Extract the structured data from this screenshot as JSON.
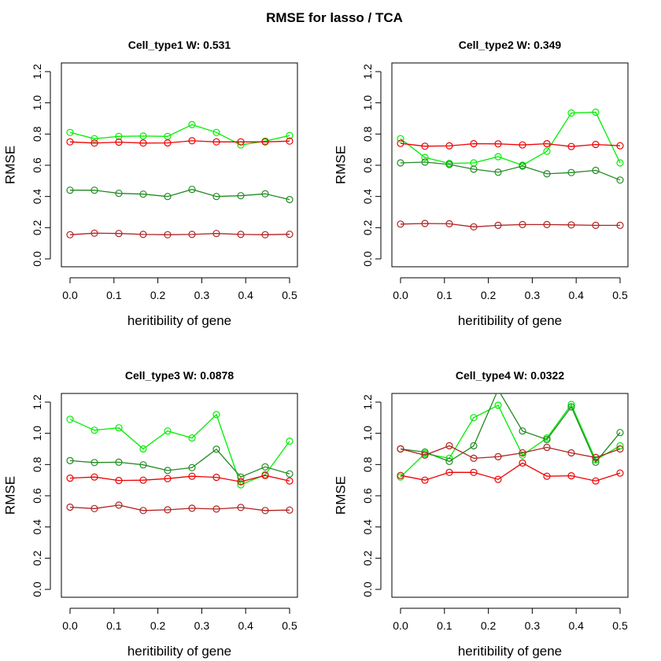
{
  "figure": {
    "title": "RMSE for lasso / TCA"
  },
  "colors": {
    "dark_green": "#228b22",
    "light_green": "#00ee00",
    "red": "#ee0000",
    "dark_red": "#b22222",
    "axis": "#000000"
  },
  "chart_data": [
    {
      "type": "line",
      "title": "Cell_type1  W: 0.531",
      "xlabel": "heritibility of gene",
      "ylabel": "RMSE",
      "xlim": [
        0,
        0.5
      ],
      "ylim": [
        0,
        1.2
      ],
      "xticks": [
        "0.0",
        "0.1",
        "0.2",
        "0.3",
        "0.4",
        "0.5"
      ],
      "yticks": [
        "0.0",
        "0.2",
        "0.4",
        "0.6",
        "0.8",
        "1.0",
        "1.2"
      ],
      "x": [
        0,
        0.0556,
        0.1111,
        0.1667,
        0.2222,
        0.2778,
        0.3333,
        0.3889,
        0.4444,
        0.5
      ],
      "series": [
        {
          "color": "light_green",
          "values": [
            0.81,
            0.77,
            0.785,
            0.787,
            0.785,
            0.86,
            0.81,
            0.73,
            0.755,
            0.79
          ]
        },
        {
          "color": "red",
          "values": [
            0.75,
            0.742,
            0.748,
            0.742,
            0.743,
            0.757,
            0.75,
            0.75,
            0.75,
            0.755
          ]
        },
        {
          "color": "dark_green",
          "values": [
            0.44,
            0.44,
            0.42,
            0.415,
            0.4,
            0.445,
            0.4,
            0.405,
            0.417,
            0.38
          ]
        },
        {
          "color": "dark_red",
          "values": [
            0.155,
            0.165,
            0.163,
            0.157,
            0.155,
            0.157,
            0.163,
            0.157,
            0.155,
            0.158
          ]
        }
      ]
    },
    {
      "type": "line",
      "title": "Cell_type2  W: 0.349",
      "xlabel": "heritibility of gene",
      "ylabel": "RMSE",
      "xlim": [
        0,
        0.5
      ],
      "ylim": [
        0,
        1.2
      ],
      "xticks": [
        "0.0",
        "0.1",
        "0.2",
        "0.3",
        "0.4",
        "0.5"
      ],
      "yticks": [
        "0.0",
        "0.2",
        "0.4",
        "0.6",
        "0.8",
        "1.0",
        "1.2"
      ],
      "x": [
        0,
        0.0556,
        0.1111,
        0.1667,
        0.2222,
        0.2778,
        0.3333,
        0.3889,
        0.4444,
        0.5
      ],
      "series": [
        {
          "color": "light_green",
          "values": [
            0.77,
            0.65,
            0.612,
            0.615,
            0.655,
            0.6,
            0.69,
            0.935,
            0.94,
            0.615
          ]
        },
        {
          "color": "red",
          "values": [
            0.74,
            0.722,
            0.724,
            0.738,
            0.737,
            0.73,
            0.738,
            0.72,
            0.733,
            0.725
          ]
        },
        {
          "color": "dark_green",
          "values": [
            0.615,
            0.62,
            0.605,
            0.575,
            0.555,
            0.595,
            0.545,
            0.553,
            0.567,
            0.505
          ]
        },
        {
          "color": "dark_red",
          "values": [
            0.223,
            0.227,
            0.225,
            0.205,
            0.215,
            0.22,
            0.22,
            0.218,
            0.215,
            0.215
          ]
        }
      ]
    },
    {
      "type": "line",
      "title": "Cell_type3  W: 0.0878",
      "xlabel": "heritibility of gene",
      "ylabel": "RMSE",
      "xlim": [
        0,
        0.5
      ],
      "ylim": [
        0,
        1.2
      ],
      "xticks": [
        "0.0",
        "0.1",
        "0.2",
        "0.3",
        "0.4",
        "0.5"
      ],
      "yticks": [
        "0.0",
        "0.2",
        "0.4",
        "0.6",
        "0.8",
        "1.0",
        "1.2"
      ],
      "x": [
        0,
        0.0556,
        0.1111,
        0.1667,
        0.2222,
        0.2778,
        0.3333,
        0.3889,
        0.4444,
        0.5
      ],
      "series": [
        {
          "color": "light_green",
          "values": [
            1.09,
            1.02,
            1.035,
            0.9,
            1.015,
            0.97,
            1.12,
            0.67,
            0.735,
            0.95
          ]
        },
        {
          "color": "dark_green",
          "values": [
            0.825,
            0.813,
            0.815,
            0.798,
            0.762,
            0.78,
            0.898,
            0.72,
            0.785,
            0.74
          ]
        },
        {
          "color": "red",
          "values": [
            0.713,
            0.72,
            0.698,
            0.7,
            0.71,
            0.725,
            0.718,
            0.69,
            0.73,
            0.695
          ]
        },
        {
          "color": "dark_red",
          "values": [
            0.527,
            0.518,
            0.54,
            0.505,
            0.51,
            0.52,
            0.515,
            0.525,
            0.505,
            0.508
          ]
        }
      ]
    },
    {
      "type": "line",
      "title": "Cell_type4  W: 0.0322",
      "xlabel": "heritibility of gene",
      "ylabel": "RMSE",
      "xlim": [
        0,
        0.5
      ],
      "ylim": [
        0,
        1.2
      ],
      "xticks": [
        "0.0",
        "0.1",
        "0.2",
        "0.3",
        "0.4",
        "0.5"
      ],
      "yticks": [
        "0.0",
        "0.2",
        "0.4",
        "0.6",
        "0.8",
        "1.0",
        "1.2"
      ],
      "x": [
        0,
        0.0556,
        0.1111,
        0.1667,
        0.2222,
        0.2778,
        0.3333,
        0.3889,
        0.4444,
        0.5
      ],
      "series": [
        {
          "color": "light_green",
          "values": [
            0.72,
            0.87,
            0.84,
            1.1,
            1.18,
            0.86,
            0.97,
            1.185,
            0.83,
            0.92
          ]
        },
        {
          "color": "dark_green",
          "values": [
            0.9,
            0.88,
            0.82,
            0.92,
            1.28,
            1.015,
            0.96,
            1.17,
            0.815,
            1.005
          ]
        },
        {
          "color": "dark_red",
          "values": [
            0.9,
            0.86,
            0.92,
            0.84,
            0.85,
            0.875,
            0.91,
            0.875,
            0.845,
            0.9
          ]
        },
        {
          "color": "red",
          "values": [
            0.73,
            0.7,
            0.75,
            0.75,
            0.705,
            0.81,
            0.725,
            0.728,
            0.695,
            0.745
          ]
        }
      ]
    }
  ]
}
